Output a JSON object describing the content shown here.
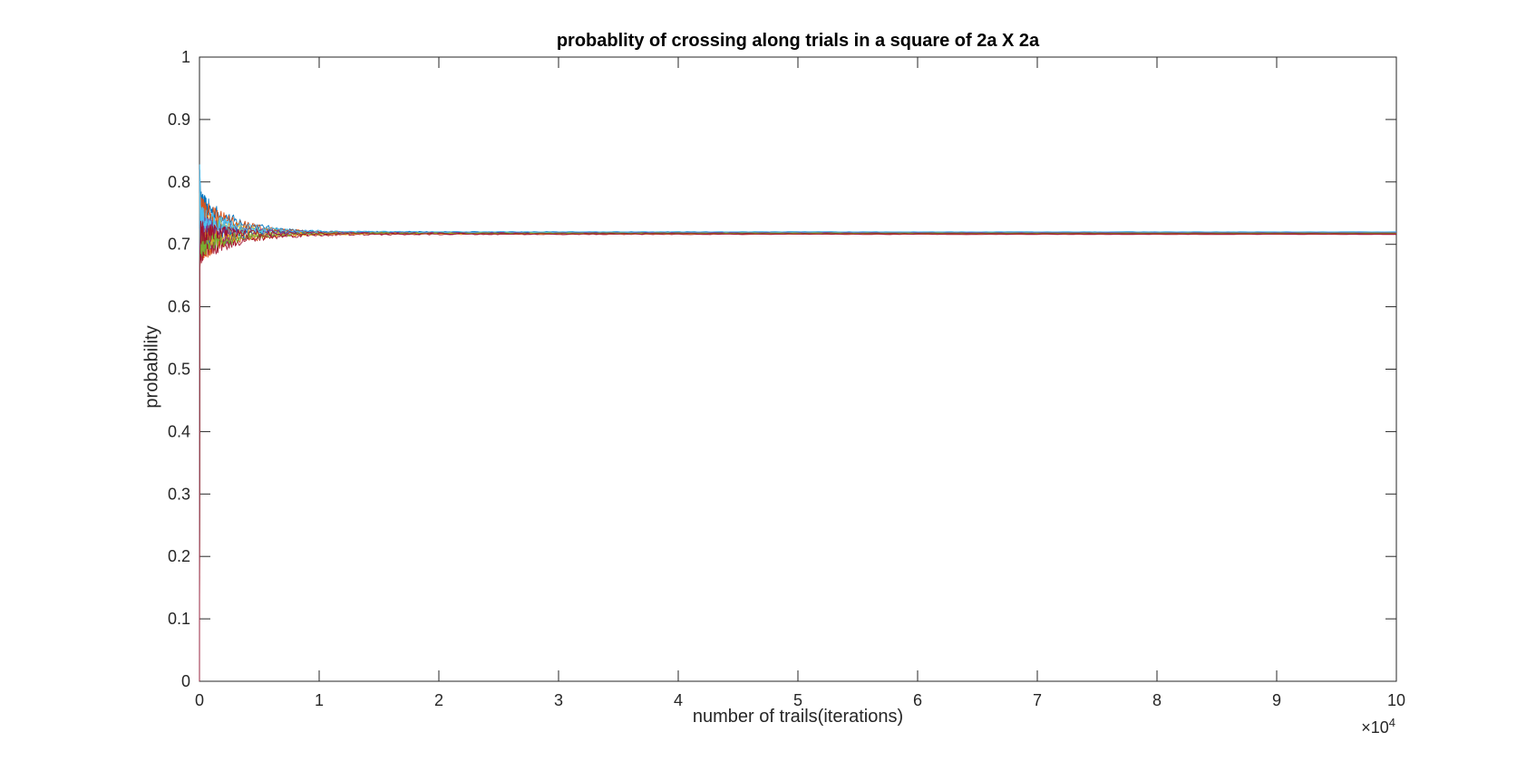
{
  "chart_data": {
    "type": "line",
    "title": "probablity of crossing along trials in a square of 2a X 2a",
    "xlabel": "number of trails(iterations)",
    "ylabel": "probability",
    "x_exponent": {
      "base": "×10",
      "power": "4"
    },
    "xlim": [
      0,
      10
    ],
    "ylim": [
      0,
      1
    ],
    "xticks": [
      "0",
      "1",
      "2",
      "3",
      "4",
      "5",
      "6",
      "7",
      "8",
      "9",
      "10"
    ],
    "yticks": [
      "0",
      "0.1",
      "0.2",
      "0.3",
      "0.4",
      "0.5",
      "0.6",
      "0.7",
      "0.8",
      "0.9",
      "1"
    ],
    "grid": false,
    "converged_value": 0.718,
    "series": [
      {
        "color": "#0072BD",
        "start": 0.86,
        "end": 0.718
      },
      {
        "color": "#D95319",
        "start": 0.64,
        "end": 0.717
      },
      {
        "color": "#EDB120",
        "start": 0.78,
        "end": 0.719
      },
      {
        "color": "#7E2F8E",
        "start": 0.67,
        "end": 0.718
      },
      {
        "color": "#77AC30",
        "start": 0.76,
        "end": 0.718
      },
      {
        "color": "#4DBEEE",
        "start": 0.74,
        "end": 0.719
      },
      {
        "color": "#A2142F",
        "start": 0.63,
        "end": 0.716
      },
      {
        "color": "#0072BD",
        "start": 0.7,
        "end": 0.72
      },
      {
        "color": "#D95319",
        "start": 0.84,
        "end": 0.718
      },
      {
        "color": "#EDB120",
        "start": 0.69,
        "end": 0.717
      },
      {
        "color": "#7E2F8E",
        "start": 0.75,
        "end": 0.719
      },
      {
        "color": "#77AC30",
        "start": 0.66,
        "end": 0.718
      },
      {
        "color": "#4DBEEE",
        "start": 0.79,
        "end": 0.72
      },
      {
        "color": "#A2142F",
        "start": 0.72,
        "end": 0.717
      }
    ]
  }
}
